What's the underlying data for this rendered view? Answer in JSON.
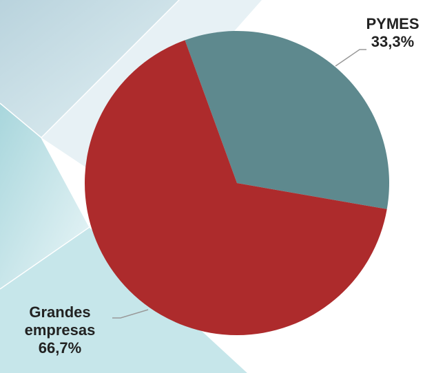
{
  "chart_data": {
    "type": "pie",
    "categories": [
      "PYMES",
      "Grandes empresas"
    ],
    "values": [
      33.3,
      66.7
    ],
    "value_labels": [
      "33,3%",
      "66,7%"
    ],
    "colors": [
      "#5e898e",
      "#ad2b2c"
    ]
  }
}
